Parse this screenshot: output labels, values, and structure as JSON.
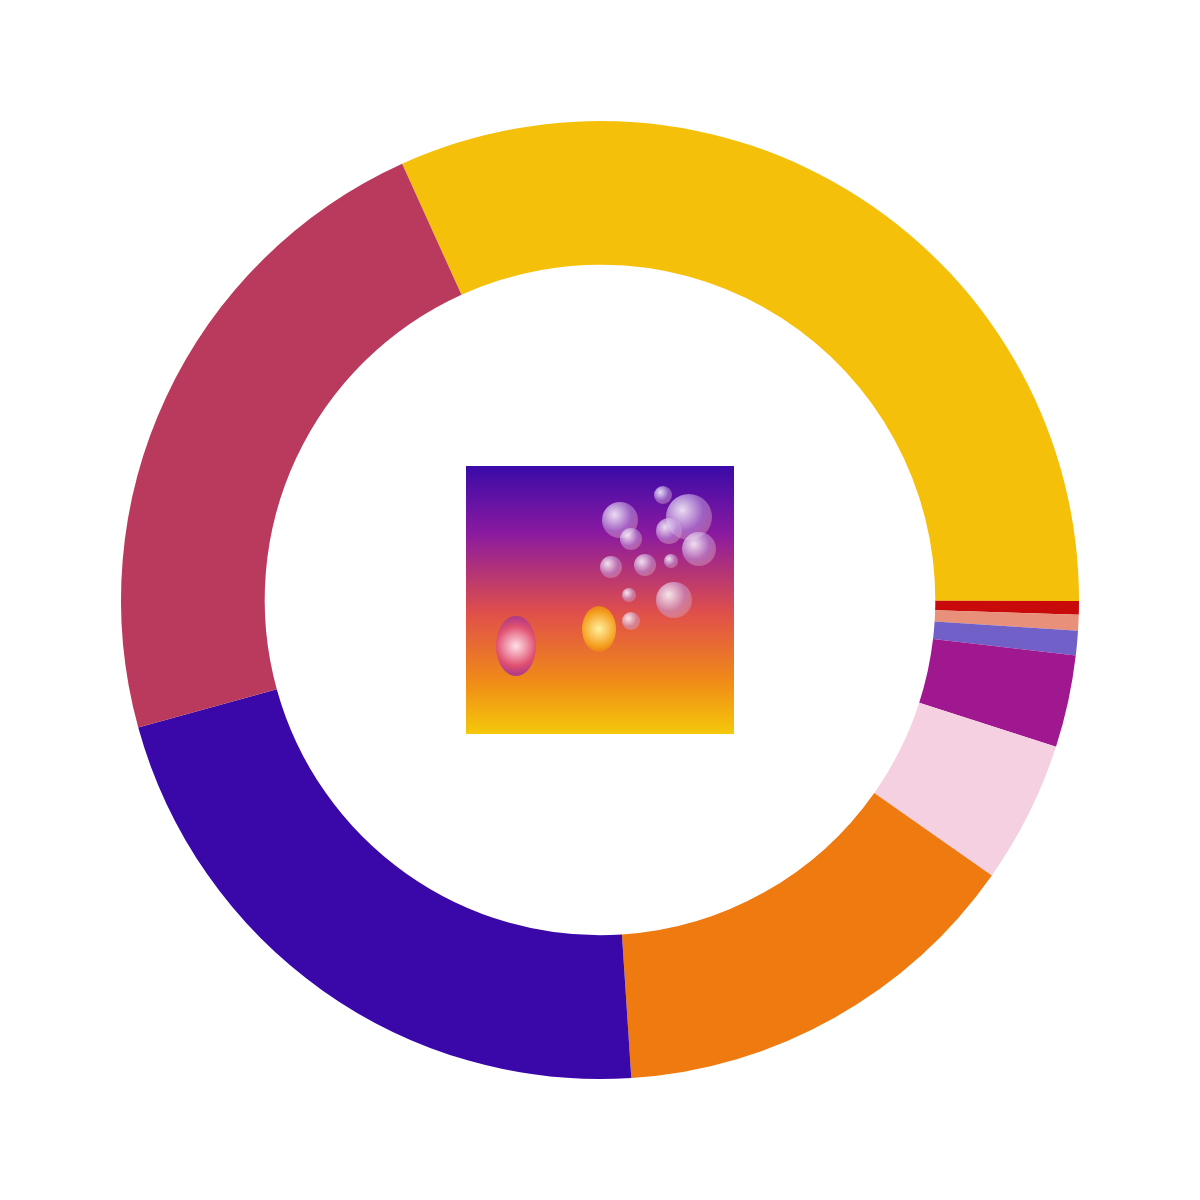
{
  "chart_data": {
    "type": "doughnut",
    "values": [
      31.8,
      0.46,
      0.53,
      0.83,
      3.1,
      4.8,
      14.2,
      21.75,
      22.5
    ],
    "colors": [
      "#f5c00a",
      "#c80a0a",
      "#e8907a",
      "#7060c8",
      "#a0188f",
      "#f5d0e0",
      "#ee7a10",
      "#3a08a8",
      "#ba3a5e"
    ],
    "legend": false
  }
}
